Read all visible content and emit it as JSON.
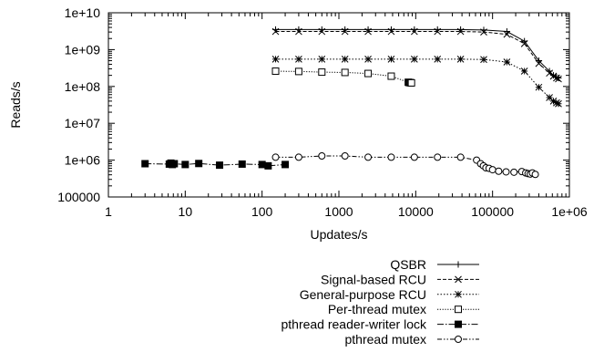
{
  "chart_data": {
    "type": "line",
    "xlabel": "Updates/s",
    "ylabel": "Reads/s",
    "xscale": "log",
    "yscale": "log",
    "xlim": [
      1,
      1000000
    ],
    "ylim": [
      100000,
      10000000000
    ],
    "x_ticks": [
      {
        "v": 1,
        "label": "1"
      },
      {
        "v": 10,
        "label": "10"
      },
      {
        "v": 100,
        "label": "100"
      },
      {
        "v": 1000,
        "label": "1000"
      },
      {
        "v": 10000,
        "label": "10000"
      },
      {
        "v": 100000,
        "label": "100000"
      },
      {
        "v": 1000000,
        "label": "1e+06"
      }
    ],
    "y_ticks": [
      {
        "v": 100000,
        "label": "100000"
      },
      {
        "v": 1000000,
        "label": "1e+06"
      },
      {
        "v": 10000000,
        "label": "1e+07"
      },
      {
        "v": 100000000,
        "label": "1e+08"
      },
      {
        "v": 1000000000,
        "label": "1e+09"
      },
      {
        "v": 10000000000,
        "label": "1e+10"
      }
    ],
    "grid": false,
    "legend": "below",
    "series": [
      {
        "name": "QSBR",
        "marker": "plus",
        "dash": "",
        "x": [
          150,
          300,
          600,
          1200,
          2400,
          4800,
          9600,
          19200,
          38400,
          76800,
          153600,
          260000,
          400000,
          550000,
          620000,
          680000,
          720000
        ],
        "y": [
          3500000000,
          3500000000,
          3500000000,
          3500000000,
          3500000000,
          3500000000,
          3500000000,
          3500000000,
          3500000000,
          3400000000,
          3100000000,
          1700000000,
          500000000,
          260000000,
          200000000,
          180000000,
          170000000
        ]
      },
      {
        "name": "Signal-based RCU",
        "marker": "cross",
        "dash": "4,2",
        "x": [
          150,
          300,
          600,
          1200,
          2400,
          4800,
          9600,
          19200,
          38400,
          76800,
          153600,
          260000,
          400000,
          550000,
          620000,
          680000,
          720000
        ],
        "y": [
          3100000000,
          3100000000,
          3100000000,
          3100000000,
          3100000000,
          3100000000,
          3100000000,
          3100000000,
          3100000000,
          3000000000,
          2600000000,
          1450000000,
          420000000,
          230000000,
          190000000,
          170000000,
          160000000
        ]
      },
      {
        "name": "General-purpose RCU",
        "marker": "star",
        "dash": "1.5,2",
        "x": [
          150,
          300,
          600,
          1200,
          2400,
          4800,
          9600,
          19200,
          38400,
          76800,
          153600,
          260000,
          400000,
          550000,
          620000,
          680000,
          720000
        ],
        "y": [
          550000000,
          550000000,
          550000000,
          550000000,
          550000000,
          550000000,
          550000000,
          550000000,
          550000000,
          540000000,
          460000000,
          260000000,
          95000000,
          50000000,
          40000000,
          36000000,
          34000000
        ]
      },
      {
        "name": "Per-thread mutex",
        "marker": "box",
        "dash": "1.2,1.6",
        "x": [
          150,
          300,
          600,
          1200,
          2400,
          4800,
          8000,
          8200,
          8400,
          8600,
          8800
        ],
        "y": [
          260000000,
          255000000,
          245000000,
          240000000,
          225000000,
          190000000,
          130000000,
          128000000,
          127000000,
          126000000,
          125000000
        ]
      },
      {
        "name": "pthread reader-writer lock",
        "marker": "filledbox",
        "dash": "7,2,1.5,2",
        "x": [
          3,
          6.2,
          6.5,
          6.8,
          7.2,
          10,
          15,
          28,
          55,
          100,
          120,
          200
        ],
        "y": [
          800000,
          780000,
          830000,
          760000,
          800000,
          760000,
          810000,
          730000,
          780000,
          760000,
          700000,
          760000
        ]
      },
      {
        "name": "pthread mutex",
        "marker": "circle",
        "dash": "5,2,1.5,2,1.5,2",
        "x": [
          150,
          300,
          600,
          1200,
          2400,
          4800,
          9600,
          19200,
          38400,
          62000,
          70000,
          76000,
          82000,
          90000,
          100000,
          120000,
          150000,
          190000,
          240000,
          270000,
          290000,
          310000,
          330000,
          360000
        ],
        "y": [
          1200000,
          1200000,
          1300000,
          1300000,
          1200000,
          1200000,
          1200000,
          1200000,
          1200000,
          1000000,
          800000,
          700000,
          620000,
          600000,
          550000,
          500000,
          480000,
          470000,
          490000,
          450000,
          430000,
          420000,
          450000,
          410000
        ]
      }
    ]
  }
}
